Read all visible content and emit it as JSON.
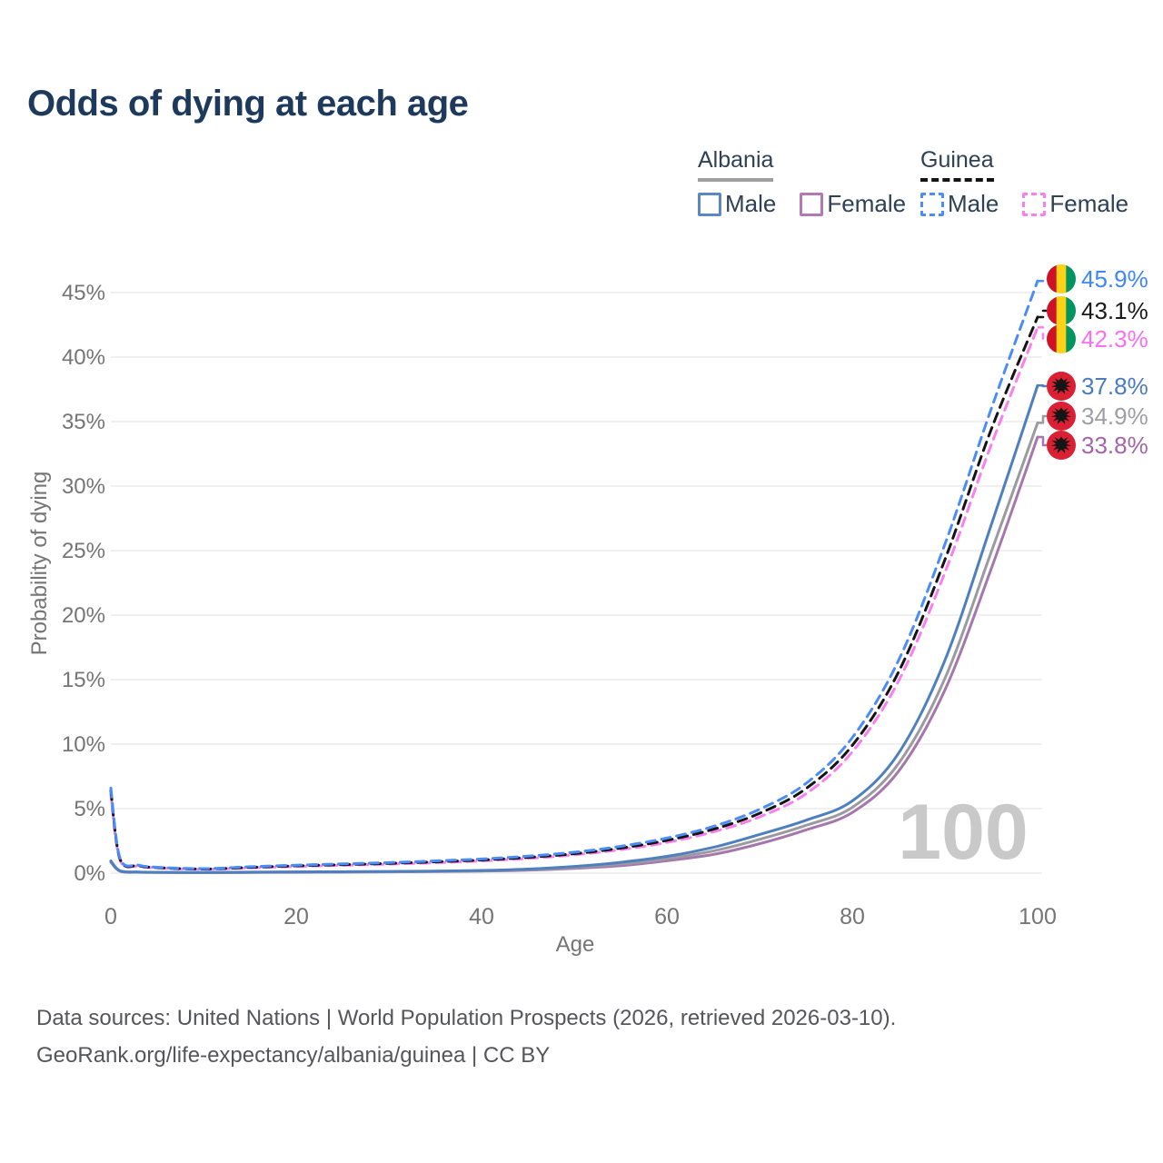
{
  "title": "Odds of dying at each age",
  "legend": {
    "groups": [
      {
        "country": "Albania",
        "line_style": "solid",
        "underline_color": "#9e9e9e",
        "items": [
          {
            "label": "Male",
            "color": "#5b87c5",
            "dashed": false
          },
          {
            "label": "Female",
            "color": "#b279b2",
            "dashed": false
          }
        ]
      },
      {
        "country": "Guinea",
        "line_style": "dashed",
        "underline_color": "#141414",
        "items": [
          {
            "label": "Male",
            "color": "#4d8cf8",
            "dashed": true
          },
          {
            "label": "Female",
            "color": "#fc7ff0",
            "dashed": true
          }
        ]
      }
    ]
  },
  "chart_data": {
    "type": "line",
    "title": "Odds of dying at each age",
    "xlabel": "Age",
    "ylabel": "Probability of dying",
    "xlim": [
      0,
      100
    ],
    "ylim": [
      0,
      46.5
    ],
    "grid": "horizontal",
    "legend_position": "top-right",
    "watermark": "100",
    "x_ticks": [
      0,
      20,
      40,
      60,
      80,
      100
    ],
    "y_ticks": [
      {
        "value": 0,
        "label": "0%"
      },
      {
        "value": 5,
        "label": "5%"
      },
      {
        "value": 10,
        "label": "10%"
      },
      {
        "value": 15,
        "label": "15%"
      },
      {
        "value": 20,
        "label": "20%"
      },
      {
        "value": 25,
        "label": "25%"
      },
      {
        "value": 30,
        "label": "30%"
      },
      {
        "value": 35,
        "label": "35%"
      },
      {
        "value": 40,
        "label": "40%"
      },
      {
        "value": 45,
        "label": "45%"
      }
    ],
    "ages": [
      0,
      1,
      3,
      5,
      10,
      15,
      20,
      25,
      30,
      35,
      40,
      45,
      50,
      55,
      60,
      65,
      70,
      75,
      80,
      85,
      90,
      95,
      100
    ],
    "series": [
      {
        "name": "Guinea Male",
        "country": "Guinea",
        "sex": "Male",
        "line_color": "#4c8cf8",
        "line_style": "dashed",
        "flag": "guinea",
        "end_value": 45.9,
        "end_label": "45.9%",
        "end_label_color": "#3f86f8",
        "values": [
          6.6,
          1.15,
          0.62,
          0.46,
          0.35,
          0.5,
          0.62,
          0.72,
          0.82,
          0.95,
          1.1,
          1.32,
          1.62,
          2.08,
          2.72,
          3.62,
          4.95,
          6.95,
          10.5,
          16.5,
          25.5,
          36.0,
          45.9
        ]
      },
      {
        "name": "Guinea Both sexes",
        "country": "Guinea",
        "sex": "Both sexes",
        "line_color": "#141414",
        "line_style": "dashed",
        "flag": "guinea",
        "end_value": 43.1,
        "end_label": "43.1%",
        "end_label_color": "#1a1a1a",
        "values": [
          6.4,
          1.08,
          0.58,
          0.43,
          0.32,
          0.45,
          0.57,
          0.66,
          0.76,
          0.88,
          1.02,
          1.22,
          1.51,
          1.94,
          2.54,
          3.4,
          4.64,
          6.55,
          9.9,
          15.6,
          24.3,
          34.4,
          43.1
        ]
      },
      {
        "name": "Guinea Female",
        "country": "Guinea",
        "sex": "Female",
        "line_color": "#fb7df0",
        "line_style": "dashed",
        "flag": "guinea",
        "end_value": 42.3,
        "end_label": "42.3%",
        "end_label_color": "#fd6ef2",
        "values": [
          6.1,
          1.0,
          0.54,
          0.41,
          0.3,
          0.41,
          0.52,
          0.61,
          0.7,
          0.81,
          0.95,
          1.14,
          1.42,
          1.82,
          2.38,
          3.2,
          4.36,
          6.15,
          9.4,
          14.9,
          23.3,
          33.2,
          42.3
        ]
      },
      {
        "name": "Albania Male",
        "country": "Albania",
        "sex": "Male",
        "line_color": "#4e7fbf",
        "line_style": "solid",
        "flag": "albania",
        "end_value": 37.8,
        "end_label": "37.8%",
        "end_label_color": "#4a7cc0",
        "values": [
          0.95,
          0.18,
          0.09,
          0.07,
          0.05,
          0.08,
          0.1,
          0.11,
          0.13,
          0.16,
          0.21,
          0.32,
          0.52,
          0.84,
          1.3,
          2.0,
          3.0,
          4.1,
          5.6,
          9.3,
          16.5,
          27.0,
          37.8
        ]
      },
      {
        "name": "Albania Both sexes",
        "country": "Albania",
        "sex": "Both sexes",
        "line_color": "#9a9aa0",
        "line_style": "solid",
        "flag": "albania",
        "end_value": 34.9,
        "end_label": "34.9%",
        "end_label_color": "#9e9ea3",
        "values": [
          0.9,
          0.16,
          0.08,
          0.06,
          0.045,
          0.065,
          0.085,
          0.095,
          0.11,
          0.14,
          0.18,
          0.27,
          0.44,
          0.7,
          1.12,
          1.72,
          2.62,
          3.7,
          5.1,
          8.5,
          15.1,
          24.9,
          34.9
        ]
      },
      {
        "name": "Albania Female",
        "country": "Albania",
        "sex": "Female",
        "line_color": "#a677ad",
        "line_style": "solid",
        "flag": "albania",
        "end_value": 33.8,
        "end_label": "33.8%",
        "end_label_color": "#a464a8",
        "values": [
          0.85,
          0.14,
          0.07,
          0.055,
          0.04,
          0.05,
          0.065,
          0.08,
          0.095,
          0.12,
          0.16,
          0.23,
          0.37,
          0.58,
          0.96,
          1.45,
          2.28,
          3.35,
          4.7,
          7.9,
          14.2,
          23.6,
          33.8
        ]
      }
    ],
    "flag_colors": {
      "guinea": {
        "stripes": [
          "#ce1126",
          "#fcd116",
          "#009460"
        ]
      },
      "albania": {
        "bg": "#da2032",
        "eagle": "#151515"
      }
    }
  },
  "footer": {
    "line1": "Data sources: United Nations | World Population Prospects (2026, retrieved 2026-03-10).",
    "line2": "GeoRank.org/life-expectancy/albania/guinea | CC BY"
  }
}
